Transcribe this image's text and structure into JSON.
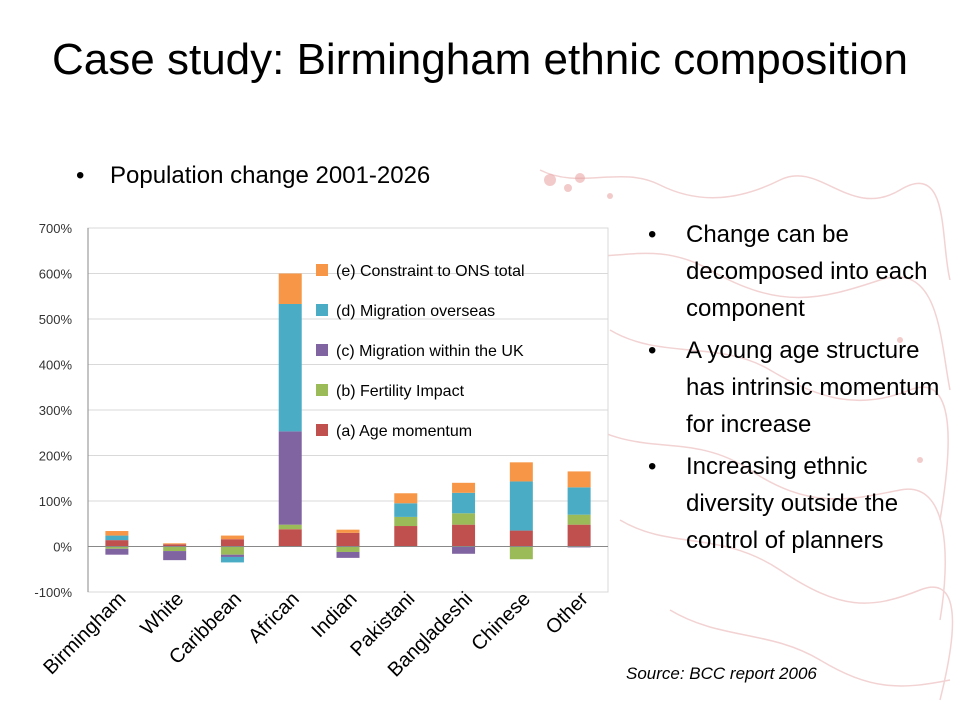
{
  "slide": {
    "title": "Case study: Birmingham ethnic composition",
    "sub_bullet": "Population change 2001-2026",
    "bullets": [
      "Change can be decomposed into each component",
      "A young age structure has intrinsic momentum for increase",
      "Increasing ethnic diversity outside the control of planners"
    ],
    "source": "Source: BCC report 2006",
    "bullet_glyph": "•"
  },
  "chart_data": {
    "type": "bar",
    "stacked": true,
    "categories": [
      "Birmingham",
      "White",
      "Caribbean",
      "African",
      "Indian",
      "Pakistani",
      "Bangladeshi",
      "Chinese",
      "Other"
    ],
    "series": [
      {
        "name": "(a) Age momentum",
        "color": "#c0504d",
        "values": [
          14,
          5,
          16,
          38,
          30,
          45,
          48,
          35,
          48
        ]
      },
      {
        "name": "(b) Fertility Impact",
        "color": "#9bbb59",
        "values": [
          -5,
          -10,
          -18,
          10,
          -12,
          20,
          25,
          -28,
          22
        ]
      },
      {
        "name": "(c) Migration within the UK",
        "color": "#8064a2",
        "values": [
          -13,
          -20,
          -5,
          205,
          -13,
          0,
          -16,
          0,
          -2
        ]
      },
      {
        "name": "(d) Migration overseas",
        "color": "#4bacc6",
        "values": [
          10,
          0,
          -12,
          280,
          0,
          30,
          45,
          108,
          60
        ]
      },
      {
        "name": "(e) Constraint to ONS total",
        "color": "#f79646",
        "values": [
          10,
          2,
          8,
          67,
          7,
          22,
          22,
          42,
          35
        ]
      }
    ],
    "yticks": [
      "700%",
      "600%",
      "500%",
      "400%",
      "300%",
      "200%",
      "100%",
      "0%",
      "-100%"
    ],
    "ylim": [
      -100,
      700
    ],
    "grid": true,
    "legend_position": "inside-top-right"
  }
}
